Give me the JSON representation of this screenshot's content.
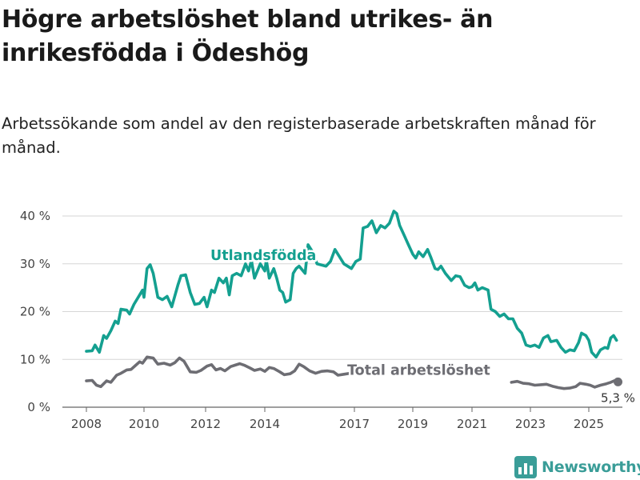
{
  "title": "Högre arbetslöshet bland utrikes- än inrikesfödda i Ödeshög",
  "subtitle": "Arbetssökande som andel av den registerbaserade arbetskraften månad för månad.",
  "brand": {
    "name": "Newsworthy",
    "color": "#3a9d98",
    "icon": "bar-chart-logo-icon"
  },
  "chart_data": {
    "type": "line",
    "title": "Högre arbetslöshet bland utrikes- än inrikesfödda i Ödeshög",
    "subtitle": "Arbetssökande som andel av den registerbaserade arbetskraften månad för månad.",
    "xlabel": "",
    "ylabel": "",
    "x_range": [
      2007.3,
      2026.0
    ],
    "ylim": [
      0,
      42
    ],
    "x_ticks": [
      2008,
      2010,
      2012,
      2014,
      2017,
      2019,
      2021,
      2023,
      2025
    ],
    "x_tick_labels": [
      "2008",
      "2010",
      "2012",
      "2014",
      "2017",
      "2019",
      "2021",
      "2023",
      "2025"
    ],
    "y_ticks": [
      0,
      10,
      20,
      30,
      40
    ],
    "y_tick_labels": [
      "0 %",
      "10 %",
      "20 %",
      "30 %",
      "40 %"
    ],
    "grid": "horizontal",
    "legend": "inline labels",
    "series": [
      {
        "name": "Utlandsfödda",
        "color": "#14a090",
        "points": [
          [
            2008.0,
            11.7
          ],
          [
            2008.2,
            11.8
          ],
          [
            2008.3,
            13.0
          ],
          [
            2008.45,
            11.5
          ],
          [
            2008.6,
            15.0
          ],
          [
            2008.7,
            14.4
          ],
          [
            2008.85,
            16.0
          ],
          [
            2009.0,
            18.0
          ],
          [
            2009.1,
            17.5
          ],
          [
            2009.2,
            20.5
          ],
          [
            2009.4,
            20.3
          ],
          [
            2009.5,
            19.5
          ],
          [
            2009.65,
            21.5
          ],
          [
            2009.85,
            23.5
          ],
          [
            2009.95,
            24.5
          ],
          [
            2010.0,
            23.0
          ],
          [
            2010.1,
            29.0
          ],
          [
            2010.2,
            29.8
          ],
          [
            2010.3,
            28.0
          ],
          [
            2010.45,
            23.0
          ],
          [
            2010.6,
            22.5
          ],
          [
            2010.75,
            23.2
          ],
          [
            2010.9,
            21.0
          ],
          [
            2011.1,
            25.5
          ],
          [
            2011.2,
            27.5
          ],
          [
            2011.35,
            27.7
          ],
          [
            2011.5,
            24.0
          ],
          [
            2011.65,
            21.5
          ],
          [
            2011.8,
            21.7
          ],
          [
            2011.95,
            23.0
          ],
          [
            2012.05,
            21.0
          ],
          [
            2012.2,
            24.5
          ],
          [
            2012.3,
            24.0
          ],
          [
            2012.45,
            27.0
          ],
          [
            2012.6,
            26.0
          ],
          [
            2012.7,
            27.0
          ],
          [
            2012.8,
            23.5
          ],
          [
            2012.9,
            27.5
          ],
          [
            2013.05,
            28.0
          ],
          [
            2013.2,
            27.5
          ],
          [
            2013.35,
            30.0
          ],
          [
            2013.45,
            28.5
          ],
          [
            2013.55,
            30.7
          ],
          [
            2013.65,
            27.0
          ],
          [
            2013.85,
            30.0
          ],
          [
            2014.0,
            28.5
          ],
          [
            2014.05,
            30.8
          ],
          [
            2014.15,
            27.0
          ],
          [
            2014.3,
            29.0
          ],
          [
            2014.4,
            27.0
          ],
          [
            2014.5,
            24.5
          ],
          [
            2014.6,
            24.0
          ],
          [
            2014.7,
            22.0
          ],
          [
            2014.85,
            22.5
          ],
          [
            2014.95,
            28.0
          ],
          [
            2015.05,
            29.0
          ],
          [
            2015.15,
            29.5
          ],
          [
            2015.35,
            28.0
          ],
          [
            2015.45,
            34.0
          ],
          [
            2015.6,
            32.5
          ],
          [
            2015.75,
            30.0
          ],
          [
            2016.05,
            29.5
          ],
          [
            2016.2,
            30.5
          ],
          [
            2016.35,
            33.0
          ],
          [
            2016.5,
            31.5
          ],
          [
            2016.65,
            30.0
          ],
          [
            2016.9,
            29.0
          ],
          [
            2017.05,
            30.5
          ],
          [
            2017.2,
            31.0
          ],
          [
            2017.3,
            37.5
          ],
          [
            2017.45,
            37.8
          ],
          [
            2017.6,
            39.0
          ],
          [
            2017.75,
            36.5
          ],
          [
            2017.9,
            38.0
          ],
          [
            2018.05,
            37.5
          ],
          [
            2018.2,
            38.5
          ],
          [
            2018.35,
            41.0
          ],
          [
            2018.45,
            40.5
          ],
          [
            2018.55,
            38.0
          ],
          [
            2018.7,
            36.0
          ],
          [
            2018.85,
            34.0
          ],
          [
            2019.0,
            32.0
          ],
          [
            2019.1,
            31.2
          ],
          [
            2019.2,
            32.5
          ],
          [
            2019.35,
            31.5
          ],
          [
            2019.5,
            33.0
          ],
          [
            2019.6,
            31.5
          ],
          [
            2019.75,
            29.0
          ],
          [
            2019.85,
            28.8
          ],
          [
            2019.95,
            29.5
          ],
          [
            2020.1,
            28.0
          ],
          [
            2020.3,
            26.5
          ],
          [
            2020.45,
            27.5
          ],
          [
            2020.6,
            27.3
          ],
          [
            2020.75,
            25.5
          ],
          [
            2020.9,
            25.0
          ],
          [
            2021.0,
            25.2
          ],
          [
            2021.1,
            26.0
          ],
          [
            2021.2,
            24.5
          ],
          [
            2021.35,
            25.0
          ],
          [
            2021.55,
            24.5
          ],
          [
            2021.65,
            20.5
          ],
          [
            2021.8,
            20.0
          ],
          [
            2021.95,
            19.0
          ],
          [
            2022.1,
            19.5
          ],
          [
            2022.25,
            18.5
          ],
          [
            2022.4,
            18.5
          ],
          [
            2022.55,
            16.5
          ],
          [
            2022.7,
            15.5
          ],
          [
            2022.85,
            13.0
          ],
          [
            2023.0,
            12.7
          ],
          [
            2023.15,
            13.0
          ],
          [
            2023.3,
            12.5
          ],
          [
            2023.45,
            14.5
          ],
          [
            2023.6,
            15.0
          ],
          [
            2023.7,
            13.7
          ],
          [
            2023.9,
            14.0
          ],
          [
            2024.05,
            12.5
          ],
          [
            2024.2,
            11.5
          ],
          [
            2024.35,
            12.0
          ],
          [
            2024.5,
            11.8
          ],
          [
            2024.65,
            13.5
          ],
          [
            2024.75,
            15.5
          ],
          [
            2024.9,
            15.0
          ],
          [
            2025.0,
            14.0
          ],
          [
            2025.1,
            11.5
          ],
          [
            2025.25,
            10.5
          ],
          [
            2025.4,
            12.0
          ],
          [
            2025.55,
            12.5
          ],
          [
            2025.65,
            12.3
          ],
          [
            2025.75,
            14.5
          ],
          [
            2025.85,
            15.0
          ],
          [
            2025.95,
            14.0
          ]
        ]
      },
      {
        "name": "Total arbetslöshet",
        "color": "#6d6d73",
        "points": [
          [
            2008.0,
            5.5
          ],
          [
            2008.2,
            5.6
          ],
          [
            2008.35,
            4.6
          ],
          [
            2008.5,
            4.3
          ],
          [
            2008.7,
            5.5
          ],
          [
            2008.85,
            5.2
          ],
          [
            2009.05,
            6.7
          ],
          [
            2009.2,
            7.1
          ],
          [
            2009.4,
            7.8
          ],
          [
            2009.55,
            7.9
          ],
          [
            2009.7,
            8.7
          ],
          [
            2009.85,
            9.5
          ],
          [
            2009.95,
            9.2
          ],
          [
            2010.1,
            10.5
          ],
          [
            2010.3,
            10.3
          ],
          [
            2010.45,
            9.0
          ],
          [
            2010.65,
            9.2
          ],
          [
            2010.85,
            8.8
          ],
          [
            2011.0,
            9.3
          ],
          [
            2011.15,
            10.3
          ],
          [
            2011.3,
            9.6
          ],
          [
            2011.5,
            7.4
          ],
          [
            2011.7,
            7.3
          ],
          [
            2011.85,
            7.7
          ],
          [
            2012.05,
            8.6
          ],
          [
            2012.2,
            8.9
          ],
          [
            2012.35,
            7.8
          ],
          [
            2012.5,
            8.1
          ],
          [
            2012.65,
            7.6
          ],
          [
            2012.85,
            8.5
          ],
          [
            2013.0,
            8.8
          ],
          [
            2013.15,
            9.1
          ],
          [
            2013.3,
            8.8
          ],
          [
            2013.5,
            8.2
          ],
          [
            2013.65,
            7.7
          ],
          [
            2013.85,
            8.0
          ],
          [
            2014.0,
            7.5
          ],
          [
            2014.15,
            8.3
          ],
          [
            2014.3,
            8.1
          ],
          [
            2014.5,
            7.4
          ],
          [
            2014.65,
            6.8
          ],
          [
            2014.85,
            7.0
          ],
          [
            2015.0,
            7.6
          ],
          [
            2015.15,
            9.0
          ],
          [
            2015.3,
            8.5
          ],
          [
            2015.5,
            7.6
          ],
          [
            2015.7,
            7.1
          ],
          [
            2015.9,
            7.5
          ],
          [
            2016.1,
            7.6
          ],
          [
            2016.3,
            7.4
          ],
          [
            2016.45,
            6.7
          ],
          [
            2016.65,
            6.9
          ],
          [
            2016.85,
            7.1
          ],
          [
            2017.0,
            7.5
          ],
          [
            2017.2,
            7.8
          ],
          [
            2017.4,
            8.3
          ]
        ]
      },
      {
        "name": "Total arbetslöshet (2022–2025)",
        "color": "#6d6d73",
        "points": [
          [
            2022.35,
            5.2
          ],
          [
            2022.55,
            5.4
          ],
          [
            2022.75,
            5.0
          ],
          [
            2022.95,
            4.9
          ],
          [
            2023.15,
            4.6
          ],
          [
            2023.35,
            4.7
          ],
          [
            2023.55,
            4.8
          ],
          [
            2023.75,
            4.4
          ],
          [
            2023.95,
            4.1
          ],
          [
            2024.15,
            3.9
          ],
          [
            2024.35,
            4.0
          ],
          [
            2024.55,
            4.3
          ],
          [
            2024.7,
            5.0
          ],
          [
            2024.9,
            4.8
          ],
          [
            2025.05,
            4.6
          ],
          [
            2025.2,
            4.2
          ],
          [
            2025.4,
            4.6
          ],
          [
            2025.6,
            4.9
          ],
          [
            2025.75,
            5.2
          ],
          [
            2025.9,
            5.6
          ],
          [
            2026.0,
            5.3
          ]
        ]
      }
    ],
    "annotations": [
      {
        "text": "Utlandsfödda",
        "series": "Utlandsfödda",
        "x": 2013.95,
        "y": 30.8,
        "color": "#14a090"
      },
      {
        "text": "Total arbetslöshet",
        "series": "Total arbetslöshet",
        "x": 2019.2,
        "y": 6.8,
        "color": "#6d6d73"
      },
      {
        "text": "5,3 %",
        "series": "Total arbetslöshet",
        "x": 2026.0,
        "y": 5.3,
        "kind": "end-value"
      }
    ]
  }
}
